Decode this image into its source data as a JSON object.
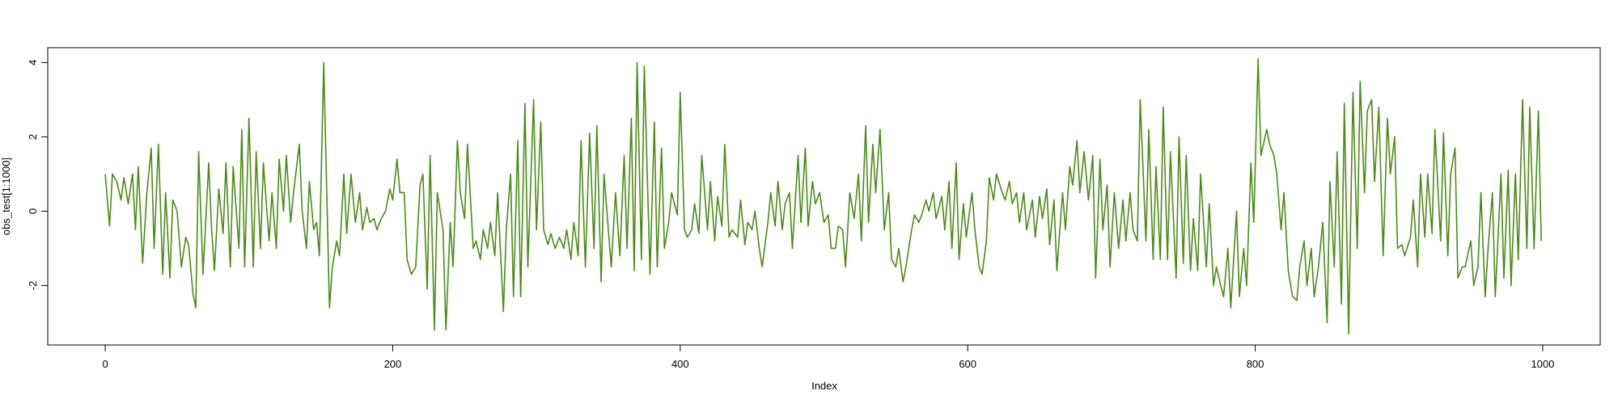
{
  "chart_data": {
    "type": "line",
    "xlabel": "Index",
    "ylabel": "obs_test[1:1000]",
    "color": "#4b8b16",
    "xlim": [
      -40,
      1040
    ],
    "ylim": [
      -3.6,
      4.4
    ],
    "xticks": [
      0,
      200,
      400,
      600,
      800,
      1000
    ],
    "yticks": [
      -2,
      0,
      2,
      4
    ],
    "x": [
      0,
      3,
      5,
      8,
      11,
      13,
      16,
      19,
      21,
      23,
      26,
      29,
      32,
      34,
      37,
      40,
      42,
      45,
      47,
      50,
      53,
      56,
      58,
      61,
      63,
      65,
      68,
      72,
      74,
      76,
      79,
      82,
      84,
      87,
      89,
      93,
      95,
      97,
      100,
      103,
      105,
      108,
      110,
      114,
      116,
      119,
      121,
      124,
      126,
      129,
      131,
      135,
      137,
      140,
      142,
      145,
      147,
      149,
      152,
      156,
      158,
      161,
      163,
      166,
      168,
      171,
      174,
      177,
      179,
      182,
      184,
      187,
      189,
      192,
      195,
      198,
      200,
      203,
      205,
      208,
      210,
      213,
      216,
      219,
      221,
      224,
      226,
      229,
      231,
      235,
      237,
      240,
      242,
      245,
      247,
      250,
      252,
      256,
      258,
      261,
      263,
      266,
      268,
      271,
      273,
      277,
      279,
      282,
      284,
      287,
      289,
      292,
      294,
      298,
      300,
      303,
      305,
      308,
      310,
      313,
      316,
      319,
      321,
      324,
      326,
      329,
      331,
      334,
      337,
      340,
      342,
      345,
      347,
      350,
      352,
      355,
      358,
      361,
      363,
      366,
      368,
      370,
      373,
      375,
      379,
      382,
      384,
      387,
      389,
      392,
      394,
      398,
      400,
      403,
      405,
      408,
      410,
      413,
      415,
      419,
      421,
      424,
      426,
      429,
      431,
      434,
      436,
      440,
      442,
      445,
      447,
      450,
      452,
      455,
      457,
      461,
      463,
      466,
      468,
      471,
      473,
      476,
      478,
      482,
      484,
      487,
      489,
      492,
      494,
      497,
      500,
      503,
      505,
      508,
      510,
      513,
      515,
      518,
      521,
      524,
      526,
      529,
      531,
      534,
      536,
      539,
      542,
      545,
      547,
      550,
      552,
      555,
      557,
      561,
      563,
      566,
      568,
      571,
      573,
      576,
      578,
      582,
      584,
      587,
      589,
      592,
      594,
      597,
      599,
      603,
      605,
      608,
      610,
      613,
      615,
      618,
      620,
      624,
      626,
      629,
      631,
      634,
      636,
      639,
      641,
      645,
      647,
      650,
      652,
      655,
      657,
      660,
      662,
      666,
      668,
      671,
      673,
      676,
      678,
      681,
      684,
      687,
      689,
      692,
      694,
      697,
      699,
      702,
      705,
      708,
      710,
      713,
      715,
      718,
      720,
      724,
      726,
      729,
      731,
      734,
      736,
      739,
      741,
      745,
      747,
      750,
      752,
      755,
      757,
      760,
      762,
      766,
      768,
      771,
      773,
      776,
      778,
      781,
      783,
      787,
      789,
      792,
      794,
      797,
      799,
      802,
      804,
      808,
      810,
      813,
      815,
      818,
      820,
      823,
      826,
      829,
      831,
      834,
      836,
      839,
      841,
      844,
      847,
      850,
      852,
      855,
      857,
      860,
      862,
      865,
      868,
      871,
      873,
      876,
      878,
      881,
      883,
      886,
      889,
      892,
      894,
      897,
      899,
      902,
      904,
      908,
      910,
      913,
      915,
      918,
      920,
      923,
      925,
      929,
      931,
      934,
      936,
      939,
      941,
      944,
      946,
      950,
      952,
      955,
      957,
      960,
      962,
      965,
      967,
      971,
      973,
      976,
      978,
      981,
      983,
      986,
      989,
      991,
      994,
      997,
      999
    ],
    "values": [
      1.0,
      -0.4,
      1.0,
      0.8,
      0.3,
      0.9,
      0.2,
      1.0,
      -0.5,
      1.2,
      -1.4,
      0.5,
      1.7,
      -1.0,
      1.8,
      -1.7,
      0.5,
      -1.8,
      0.3,
      0.0,
      -1.5,
      -0.7,
      -0.9,
      -2.2,
      -2.6,
      1.6,
      -1.7,
      1.3,
      -0.5,
      -1.6,
      0.6,
      -0.6,
      1.3,
      -1.5,
      1.2,
      -1.0,
      2.2,
      -1.5,
      2.5,
      -1.5,
      1.6,
      -1.0,
      1.3,
      -0.8,
      0.5,
      -1.0,
      1.4,
      0.0,
      1.5,
      -0.3,
      0.5,
      1.8,
      0.0,
      -1.0,
      0.8,
      -0.5,
      -0.3,
      -1.2,
      4.0,
      -2.6,
      -1.5,
      -0.8,
      -1.2,
      1.0,
      -0.6,
      1.0,
      -0.3,
      0.5,
      -0.5,
      0.1,
      -0.3,
      -0.2,
      -0.5,
      -0.2,
      0.0,
      0.6,
      0.3,
      1.4,
      0.5,
      0.5,
      -1.3,
      -1.7,
      -1.5,
      0.7,
      1.0,
      -2.1,
      1.5,
      -3.2,
      0.5,
      -0.5,
      -3.2,
      -0.3,
      -1.5,
      1.9,
      0.5,
      -0.2,
      1.8,
      -1.0,
      -0.8,
      -1.3,
      -0.5,
      -1.0,
      -0.3,
      -1.2,
      0.5,
      -2.7,
      -0.5,
      1.0,
      -2.3,
      1.9,
      -2.3,
      2.9,
      -1.5,
      3.0,
      -0.5,
      2.4,
      -0.5,
      -0.9,
      -0.6,
      -1.0,
      -0.7,
      -1.0,
      -0.5,
      -1.3,
      -0.3,
      -1.2,
      1.9,
      -1.5,
      2.1,
      -1.0,
      2.3,
      -1.9,
      1.0,
      -0.5,
      -1.5,
      0.5,
      -1.2,
      1.5,
      -1.0,
      2.5,
      -1.6,
      4.0,
      -1.3,
      3.9,
      -1.7,
      2.4,
      -1.5,
      1.7,
      -1.0,
      -0.3,
      0.5,
      -0.1,
      3.2,
      -0.5,
      -0.7,
      -0.5,
      0.2,
      -0.6,
      1.5,
      -0.5,
      0.8,
      -0.8,
      0.4,
      -0.4,
      1.8,
      -0.7,
      -0.5,
      -0.7,
      0.3,
      -0.9,
      -0.3,
      -0.5,
      0.0,
      -1.0,
      -1.5,
      -0.3,
      0.5,
      -0.4,
      0.8,
      -0.5,
      0.2,
      0.5,
      -1.0,
      1.5,
      -0.3,
      1.7,
      -0.4,
      0.8,
      0.2,
      0.5,
      -0.3,
      -0.1,
      -1.0,
      -1.0,
      -0.4,
      -0.5,
      -1.5,
      0.5,
      -0.2,
      1.0,
      -0.8,
      2.3,
      -0.3,
      1.8,
      0.5,
      2.2,
      -0.5,
      0.5,
      -1.3,
      -1.5,
      -1.0,
      -1.9,
      -1.5,
      -0.5,
      -0.1,
      -0.3,
      -0.1,
      0.3,
      0.0,
      0.5,
      -0.2,
      0.4,
      -0.5,
      0.8,
      -1.0,
      1.3,
      -1.3,
      0.2,
      -0.7,
      0.5,
      -0.5,
      -1.5,
      -1.7,
      -0.8,
      0.9,
      0.3,
      1.0,
      0.5,
      0.3,
      0.8,
      0.2,
      0.5,
      -0.3,
      0.5,
      -0.5,
      0.3,
      -0.7,
      0.4,
      -0.2,
      0.6,
      -0.9,
      0.3,
      -1.6,
      0.5,
      -0.5,
      1.2,
      0.7,
      1.9,
      0.5,
      1.6,
      0.3,
      1.5,
      -1.8,
      1.4,
      -0.5,
      0.7,
      -1.5,
      0.5,
      -1.0,
      0.3,
      -0.8,
      0.5,
      -0.5,
      -0.8,
      3.0,
      -0.8,
      2.2,
      -1.3,
      1.2,
      -1.3,
      2.8,
      -1.3,
      1.6,
      -1.8,
      2.0,
      -1.4,
      1.5,
      -1.6,
      -0.2,
      -1.6,
      1.0,
      -1.5,
      0.2,
      -2.0,
      -1.5,
      -2.0,
      -2.3,
      -1.0,
      -2.6,
      0.0,
      -2.3,
      -1.0,
      -2.0,
      1.3,
      -0.3,
      4.1,
      1.5,
      2.2,
      1.8,
      1.5,
      1.0,
      -0.5,
      0.5,
      -1.6,
      -2.3,
      -2.4,
      -1.5,
      -0.8,
      -2.0,
      -1.0,
      -2.3,
      -1.5,
      -0.3,
      -3.0,
      0.8,
      -1.5,
      1.6,
      -2.5,
      2.9,
      -3.3,
      3.2,
      -1.0,
      3.5,
      0.5,
      2.7,
      3.0,
      0.8,
      2.8,
      -1.2,
      2.5,
      1.0,
      2.0,
      -1.0,
      -0.9,
      -1.2,
      -0.7,
      0.3,
      -1.5,
      1.0,
      -0.7,
      1.0,
      -0.6,
      2.2,
      -0.8,
      2.1,
      -1.2,
      1.0,
      1.7,
      -1.8,
      -1.5,
      -1.5,
      -0.8,
      -2.0,
      -1.5,
      0.5,
      -2.3,
      -1.0,
      0.5,
      -2.3,
      1.0,
      -1.8,
      1.1,
      -2.0,
      1.0,
      -1.3,
      3.0,
      -1.0,
      2.8,
      -1.0,
      2.7,
      -0.8
    ]
  }
}
